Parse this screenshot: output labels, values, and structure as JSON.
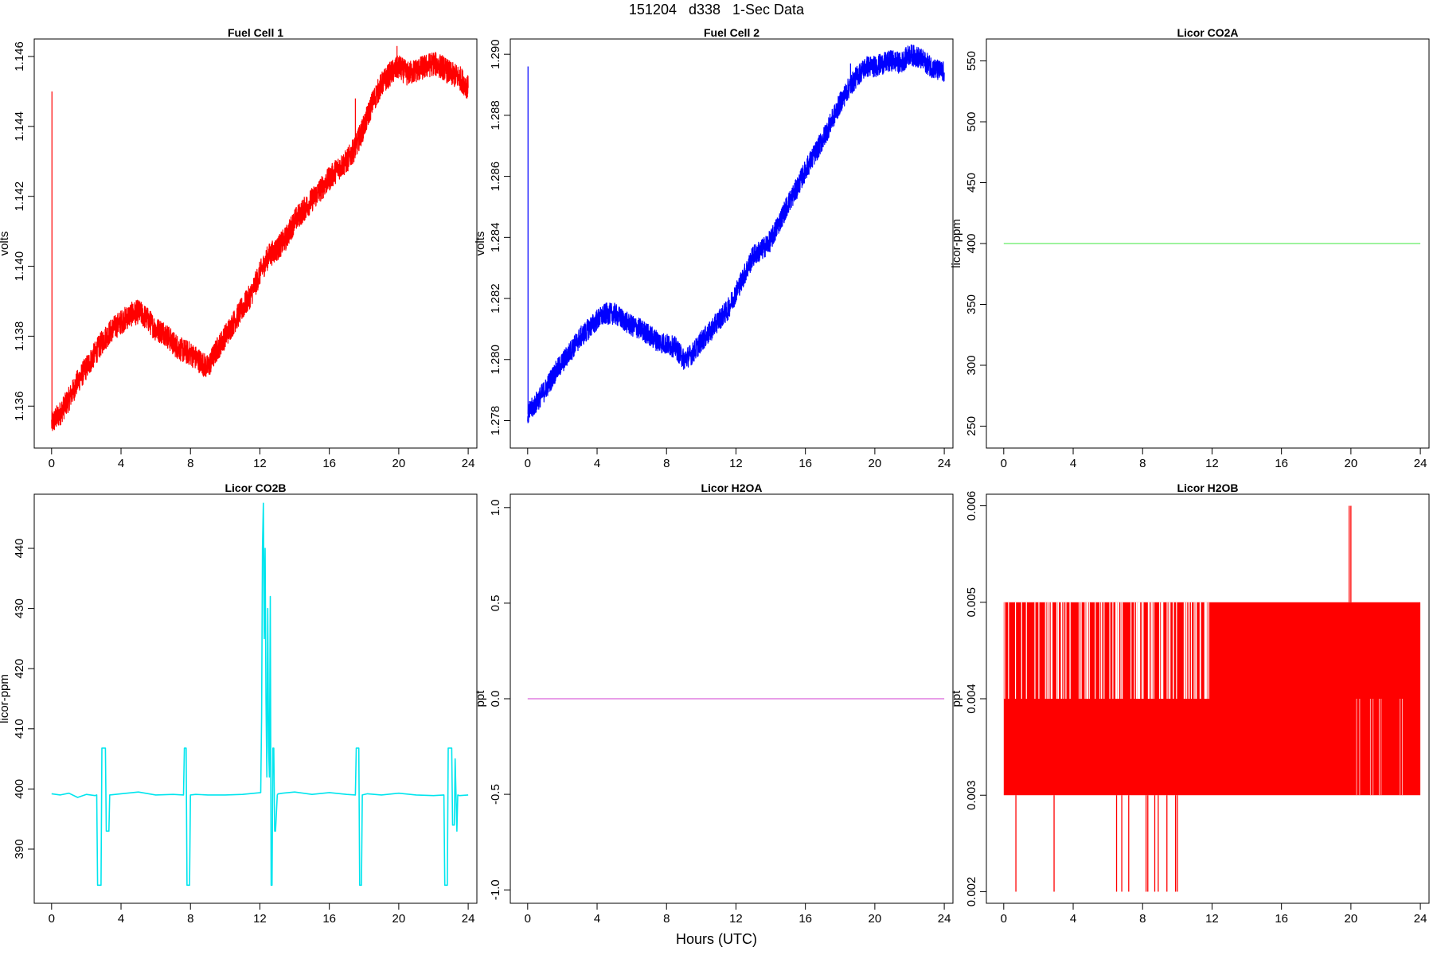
{
  "figure": {
    "title": "151204   d338   1-Sec Data",
    "xlabel": "Hours (UTC)"
  },
  "chart_data": [
    {
      "type": "line",
      "title": "Fuel Cell 1",
      "ylabel": "volts",
      "color": "#ff0000",
      "xlim": [
        -1,
        24.5
      ],
      "ylim": [
        1.1348,
        1.1465
      ],
      "xticks": [
        0,
        4,
        8,
        12,
        16,
        20,
        24
      ],
      "yticks": [
        "1.136",
        "1.138",
        "1.140",
        "1.142",
        "1.144",
        "1.146"
      ],
      "noise": 0.00035,
      "spikes": [
        [
          0.02,
          1.145
        ],
        [
          17.5,
          1.1448
        ],
        [
          19.9,
          1.1463
        ]
      ],
      "x": [
        0,
        0.5,
        1,
        1.5,
        2,
        2.5,
        3,
        3.5,
        4,
        4.5,
        5,
        5.5,
        6,
        6.5,
        7,
        7.5,
        8,
        8.5,
        9,
        9.5,
        10,
        10.5,
        11,
        11.5,
        12,
        12.5,
        13,
        13.5,
        14,
        14.5,
        15,
        15.5,
        16,
        16.5,
        17,
        17.5,
        18,
        18.5,
        19,
        19.5,
        20,
        20.5,
        21,
        21.5,
        22,
        22.5,
        23,
        23.5,
        24
      ],
      "y": [
        1.1355,
        1.1358,
        1.1362,
        1.1367,
        1.1371,
        1.1375,
        1.1379,
        1.1382,
        1.1384,
        1.1386,
        1.1387,
        1.1385,
        1.1382,
        1.1381,
        1.1378,
        1.1376,
        1.1375,
        1.1373,
        1.1371,
        1.1376,
        1.138,
        1.1384,
        1.1388,
        1.1392,
        1.1398,
        1.1403,
        1.1405,
        1.1408,
        1.1413,
        1.1416,
        1.1419,
        1.1422,
        1.1425,
        1.1428,
        1.143,
        1.1434,
        1.144,
        1.1447,
        1.1452,
        1.1455,
        1.1457,
        1.1455,
        1.1456,
        1.1457,
        1.1458,
        1.1457,
        1.1455,
        1.1454,
        1.1451
      ]
    },
    {
      "type": "line",
      "title": "Fuel Cell 2",
      "ylabel": "volts",
      "color": "#0000ff",
      "xlim": [
        -1,
        24.5
      ],
      "ylim": [
        1.2771,
        1.2905
      ],
      "xticks": [
        0,
        4,
        8,
        12,
        16,
        20,
        24
      ],
      "yticks": [
        "1.278",
        "1.280",
        "1.282",
        "1.284",
        "1.286",
        "1.288",
        "1.290"
      ],
      "noise": 0.00035,
      "spikes": [
        [
          0.02,
          1.2896
        ],
        [
          18.6,
          1.2897
        ]
      ],
      "x": [
        0,
        0.5,
        1,
        1.5,
        2,
        2.5,
        3,
        3.5,
        4,
        4.5,
        5,
        5.5,
        6,
        6.5,
        7,
        7.5,
        8,
        8.5,
        9,
        9.5,
        10,
        10.5,
        11,
        11.5,
        12,
        12.5,
        13,
        13.5,
        14,
        14.5,
        15,
        15.5,
        16,
        16.5,
        17,
        17.5,
        18,
        18.5,
        19,
        19.5,
        20,
        20.5,
        21,
        21.5,
        22,
        22.5,
        23,
        23.5,
        24
      ],
      "y": [
        1.2782,
        1.2786,
        1.279,
        1.2795,
        1.2799,
        1.2803,
        1.2807,
        1.281,
        1.2813,
        1.2815,
        1.2815,
        1.2813,
        1.2811,
        1.281,
        1.2808,
        1.2806,
        1.2805,
        1.2804,
        1.28,
        1.2802,
        1.2806,
        1.2809,
        1.2813,
        1.2816,
        1.2822,
        1.2828,
        1.2834,
        1.2836,
        1.2839,
        1.2845,
        1.2851,
        1.2856,
        1.2862,
        1.2867,
        1.2872,
        1.2878,
        1.2884,
        1.2889,
        1.2893,
        1.2896,
        1.2896,
        1.2897,
        1.2898,
        1.2897,
        1.29,
        1.2899,
        1.2897,
        1.2895,
        1.2894
      ]
    },
    {
      "type": "line",
      "title": "Licor CO2A",
      "ylabel": "licor-ppm",
      "color": "#7fef7f",
      "xlim": [
        -1,
        24.5
      ],
      "ylim": [
        232,
        568
      ],
      "xticks": [
        0,
        4,
        8,
        12,
        16,
        20,
        24
      ],
      "yticks": [
        "250",
        "300",
        "350",
        "400",
        "450",
        "500",
        "550"
      ],
      "noise": 0,
      "spikes": [],
      "x": [
        0,
        24
      ],
      "y": [
        400,
        400
      ]
    },
    {
      "type": "line",
      "title": "Licor CO2B",
      "ylabel": "licor-ppm",
      "color": "#00e5ee",
      "xlim": [
        -1,
        24.5
      ],
      "ylim": [
        381,
        449
      ],
      "xticks": [
        0,
        4,
        8,
        12,
        16,
        20,
        24
      ],
      "yticks": [
        "390",
        "400",
        "410",
        "420",
        "430",
        "440"
      ],
      "noise": 0,
      "spikes": [],
      "x": [
        0,
        0.5,
        1,
        1.5,
        2,
        2.5,
        2.6,
        2.65,
        2.85,
        2.9,
        3.1,
        3.15,
        3.3,
        3.35,
        4,
        5,
        6,
        7,
        7.6,
        7.65,
        7.75,
        7.8,
        7.95,
        8.0,
        8.3,
        9,
        10,
        11,
        12.05,
        12.1,
        12.15,
        12.2,
        12.25,
        12.3,
        12.35,
        12.4,
        12.45,
        12.5,
        12.55,
        12.6,
        12.65,
        12.7,
        12.75,
        12.8,
        12.85,
        12.9,
        13.0,
        13.05,
        13.1,
        13.3,
        14,
        15,
        16,
        17,
        17.5,
        17.55,
        17.7,
        17.75,
        17.85,
        17.9,
        18.2,
        19,
        20,
        21,
        22,
        22.6,
        22.65,
        22.8,
        22.85,
        23.05,
        23.1,
        23.2,
        23.25,
        23.35,
        23.4,
        23.5,
        24
      ],
      "y": [
        399.2,
        399.0,
        399.3,
        398.6,
        399.1,
        398.9,
        399.0,
        384.0,
        384.0,
        406.8,
        406.8,
        393.0,
        393.0,
        399.0,
        399.2,
        399.5,
        399.0,
        399.1,
        399.0,
        406.8,
        406.8,
        384.0,
        384.0,
        399.0,
        399.1,
        399.0,
        399.0,
        399.1,
        399.4,
        412.0,
        440.0,
        447.5,
        425.0,
        440.0,
        415.0,
        402.0,
        430.0,
        407.0,
        402.0,
        432.0,
        384.0,
        384.0,
        406.8,
        406.8,
        393.0,
        393.0,
        399.0,
        399.2,
        399.2,
        399.3,
        399.5,
        399.1,
        399.4,
        399.1,
        399.0,
        406.8,
        406.8,
        384.0,
        384.0,
        399.0,
        399.2,
        399.0,
        399.3,
        399.0,
        398.9,
        399.0,
        384.0,
        384.0,
        406.8,
        406.8,
        394.0,
        394.0,
        405.0,
        393.0,
        399.0,
        398.9,
        399.0
      ]
    },
    {
      "type": "line",
      "title": "Licor H2OA",
      "ylabel": "ppt",
      "color": "#e07fe0",
      "xlim": [
        -1,
        24.5
      ],
      "ylim": [
        -1.07,
        1.07
      ],
      "xticks": [
        0,
        4,
        8,
        12,
        16,
        20,
        24
      ],
      "yticks": [
        "-1.0",
        "-0.5",
        "0.0",
        "0.5",
        "1.0"
      ],
      "noise": 0,
      "spikes": [],
      "x": [
        0,
        24
      ],
      "y": [
        0,
        0
      ]
    },
    {
      "type": "line",
      "title": "Licor H2OB",
      "ylabel": "ppt",
      "color": "#ff0000",
      "xlim": [
        -1,
        24.5
      ],
      "ylim": [
        0.00188,
        0.00612
      ],
      "xticks": [
        0,
        4,
        8,
        12,
        16,
        20,
        24
      ],
      "yticks": [
        "0.002",
        "0.003",
        "0.004",
        "0.005",
        "0.006"
      ],
      "band": [
        0.003,
        0.005
      ],
      "low_spikes_x": [
        0.7,
        2.9,
        6.5,
        6.8,
        7.2,
        8.2,
        8.3,
        8.7,
        8.9,
        9.4,
        9.9,
        10.0
      ],
      "high_spikes_x": [
        19.9,
        20.0
      ],
      "noise": 0,
      "spikes": [],
      "x": [
        0,
        24
      ],
      "y": [
        0.004,
        0.004
      ]
    }
  ]
}
